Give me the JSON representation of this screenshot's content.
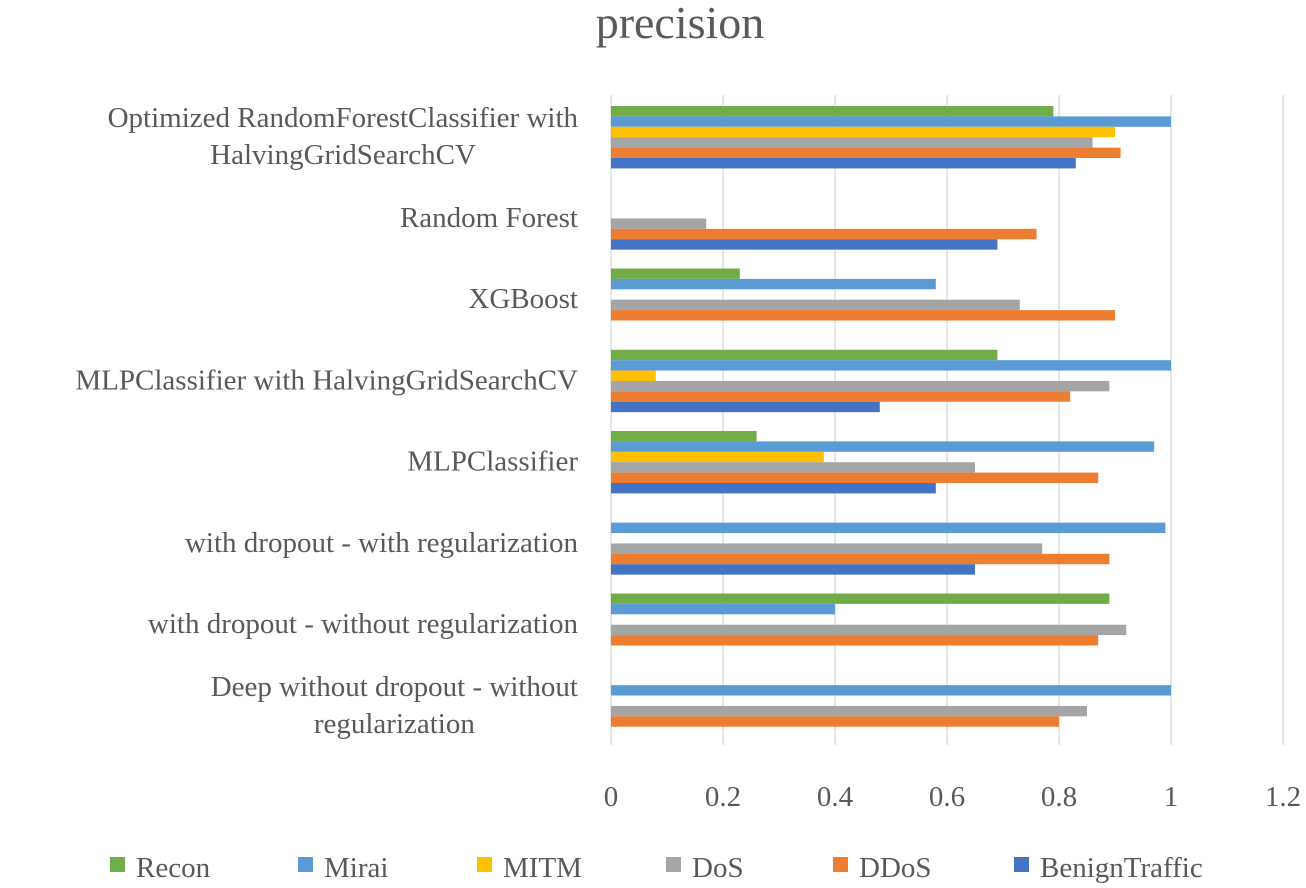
{
  "chart_data": {
    "type": "bar",
    "orientation": "horizontal",
    "title": "precision",
    "xlim": [
      0,
      1.2
    ],
    "xticks": [
      "0",
      "0.2",
      "0.4",
      "0.6",
      "0.8",
      "1",
      "1.2"
    ],
    "tick_values": [
      0,
      0.2,
      0.4,
      0.6,
      0.8,
      1,
      1.2
    ],
    "grid": true,
    "legend_position": "bottom",
    "categories": [
      [
        "Optimized RandomForestClassifier with",
        "HalvingGridSearchCV"
      ],
      [
        "Random Forest"
      ],
      [
        "XGBoost"
      ],
      [
        "MLPClassifier with HalvingGridSearchCV"
      ],
      [
        "MLPClassifier"
      ],
      [
        "with dropout - with regularization"
      ],
      [
        "with dropout - without regularization"
      ],
      [
        "Deep without dropout - without",
        "regularization"
      ]
    ],
    "series": [
      {
        "name": "Recon",
        "color": "#70ad47",
        "values": [
          0.79,
          0,
          0.23,
          0.69,
          0.26,
          0,
          0.89,
          0
        ]
      },
      {
        "name": "Mirai",
        "color": "#5b9bd5",
        "values": [
          1.0,
          0,
          0.58,
          1.0,
          0.97,
          0.99,
          0.4,
          1.0
        ]
      },
      {
        "name": "MITM",
        "color": "#ffc000",
        "values": [
          0.9,
          0,
          0,
          0.08,
          0.38,
          0,
          0,
          0
        ]
      },
      {
        "name": "DoS",
        "color": "#a5a5a5",
        "values": [
          0.86,
          0.17,
          0.73,
          0.89,
          0.65,
          0.77,
          0.92,
          0.85
        ]
      },
      {
        "name": "DDoS",
        "color": "#ed7d31",
        "values": [
          0.91,
          0.76,
          0.9,
          0.82,
          0.87,
          0.89,
          0.87,
          0.8
        ]
      },
      {
        "name": "BenignTraffic",
        "color": "#4472c4",
        "values": [
          0.83,
          0.69,
          0,
          0.48,
          0.58,
          0.65,
          0,
          0
        ]
      }
    ]
  }
}
